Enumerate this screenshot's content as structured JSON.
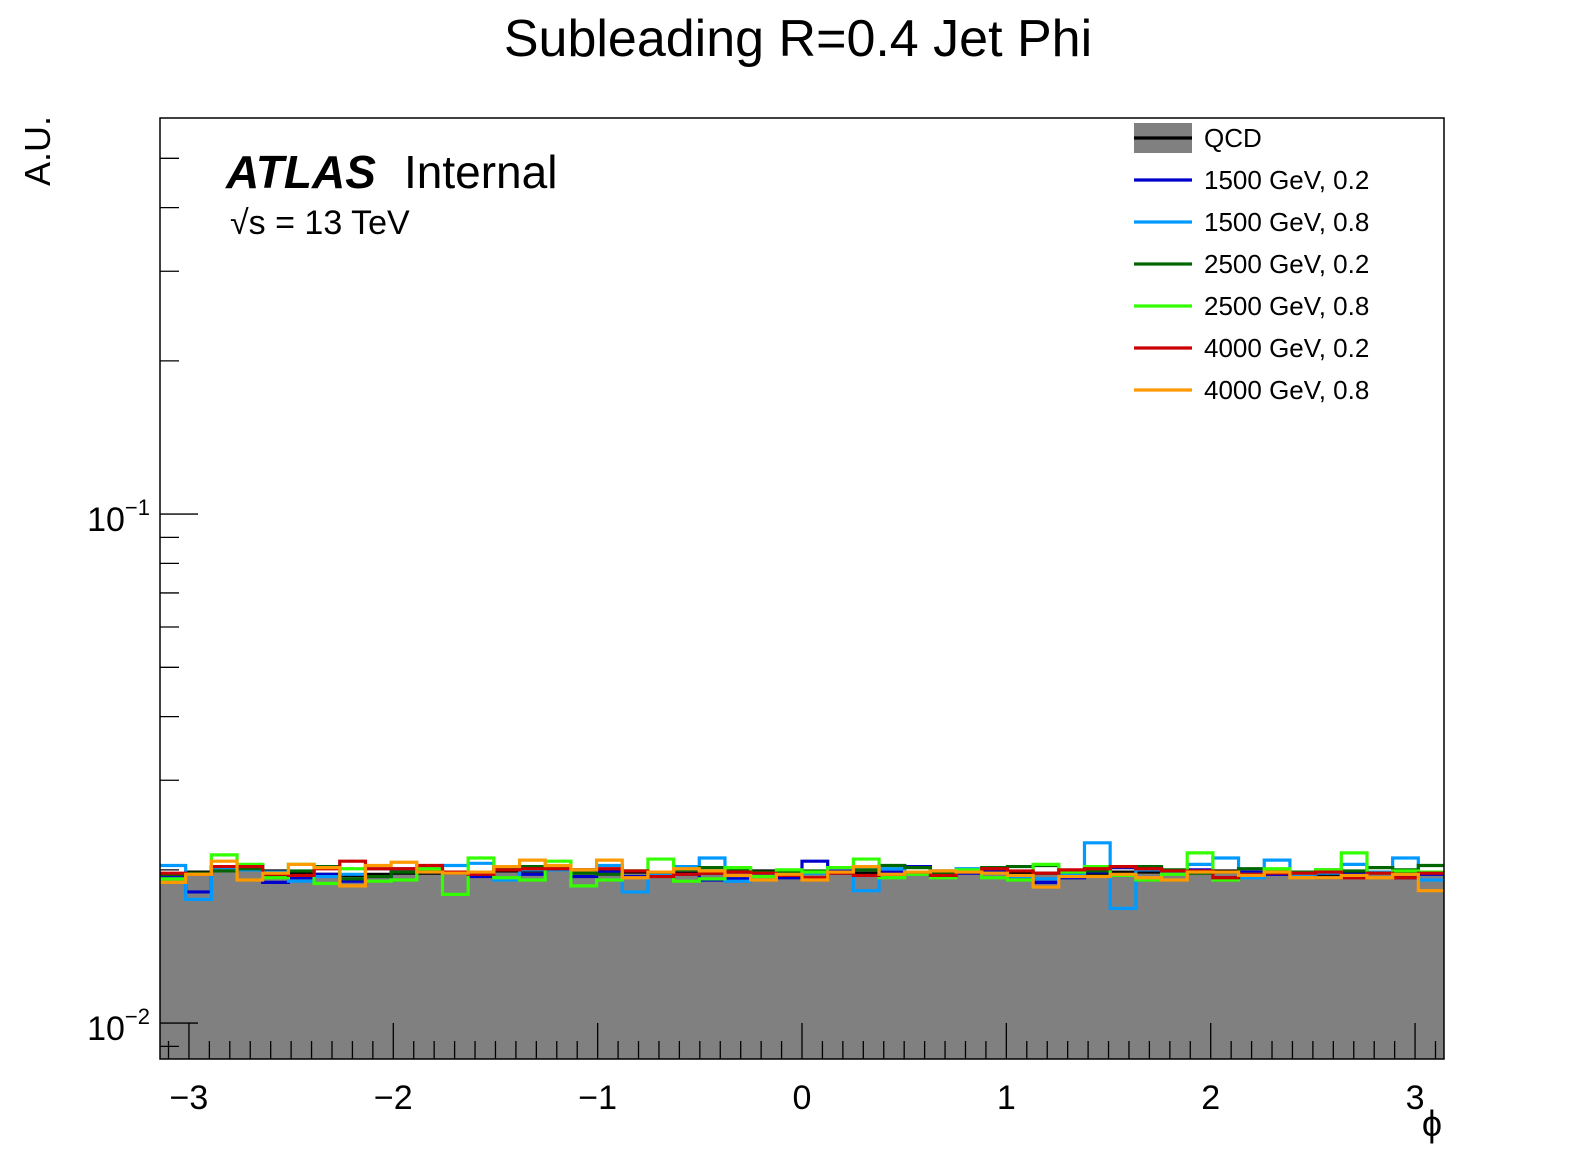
{
  "chart_data": {
    "type": "line",
    "title": "Subleading R=0.4 Jet Phi",
    "xlabel": "ϕ",
    "ylabel": "A.U.",
    "yscale": "log",
    "xlim": [
      -3.1416,
      3.1416
    ],
    "ylim": [
      0.0085,
      0.6
    ],
    "bins": 50,
    "x_ticks": [
      {
        "value": -3,
        "label": "−3"
      },
      {
        "value": -2,
        "label": "−2"
      },
      {
        "value": -1,
        "label": "−1"
      },
      {
        "value": 0,
        "label": "0"
      },
      {
        "value": 1,
        "label": "1"
      },
      {
        "value": 2,
        "label": "2"
      },
      {
        "value": 3,
        "label": "3"
      }
    ],
    "y_ticks": [
      {
        "value": 0.1,
        "base": "10",
        "exp": "−1"
      },
      {
        "value": 0.01,
        "base": "10",
        "exp": "−2"
      }
    ],
    "annotations": {
      "experiment": "ATLAS",
      "status": "Internal",
      "energy": "s = 13 TeV"
    },
    "legend_position": "top-right",
    "series": [
      {
        "name": "QCD",
        "color": "#000000",
        "fill": "#808080",
        "values": [
          0.0196,
          0.0198,
          0.0199,
          0.02,
          0.0199,
          0.0197,
          0.0196,
          0.0195,
          0.0196,
          0.0197,
          0.0197,
          0.0198,
          0.0198,
          0.0199,
          0.0199,
          0.02,
          0.02,
          0.0199,
          0.0198,
          0.0198,
          0.0197,
          0.0197,
          0.0198,
          0.0199,
          0.0198,
          0.0198,
          0.0197,
          0.0197,
          0.0198,
          0.0198,
          0.0199,
          0.0198,
          0.0198,
          0.0197,
          0.0197,
          0.0196,
          0.0197,
          0.0198,
          0.0198,
          0.0198,
          0.0199,
          0.0199,
          0.0198,
          0.0197,
          0.0197,
          0.0196,
          0.0197,
          0.0198,
          0.0198,
          0.0198
        ]
      },
      {
        "name": "1500 GeV, 0.2",
        "color": "#0000cc",
        "values": [
          0.0193,
          0.0181,
          0.0201,
          0.0204,
          0.0189,
          0.0193,
          0.0196,
          0.019,
          0.0194,
          0.02,
          0.0198,
          0.0197,
          0.0194,
          0.0192,
          0.0196,
          0.02,
          0.0194,
          0.0198,
          0.0194,
          0.0198,
          0.0196,
          0.0191,
          0.0192,
          0.0198,
          0.0193,
          0.0208,
          0.0199,
          0.0203,
          0.0198,
          0.0203,
          0.0194,
          0.0197,
          0.02,
          0.0194,
          0.0189,
          0.0193,
          0.0198,
          0.0202,
          0.0201,
          0.0197,
          0.02,
          0.0193,
          0.0198,
          0.0196,
          0.0197,
          0.0193,
          0.0196,
          0.0197,
          0.0193,
          0.0196
        ]
      },
      {
        "name": "1500 GeV, 0.8",
        "color": "#0099ff",
        "values": [
          0.0204,
          0.0175,
          0.0201,
          0.02,
          0.0198,
          0.019,
          0.0194,
          0.0196,
          0.0201,
          0.0201,
          0.0201,
          0.0204,
          0.0206,
          0.0191,
          0.02,
          0.02,
          0.02,
          0.0204,
          0.0181,
          0.0195,
          0.0203,
          0.0211,
          0.019,
          0.0196,
          0.0195,
          0.0197,
          0.0197,
          0.0182,
          0.0201,
          0.0196,
          0.0196,
          0.0201,
          0.0197,
          0.0194,
          0.0192,
          0.0196,
          0.0226,
          0.0168,
          0.02,
          0.0198,
          0.0205,
          0.0211,
          0.0193,
          0.0209,
          0.0196,
          0.0197,
          0.0205,
          0.0198,
          0.0211,
          0.0191
        ]
      },
      {
        "name": "2500 GeV, 0.2",
        "color": "#006600",
        "values": [
          0.0196,
          0.0197,
          0.0199,
          0.0201,
          0.0194,
          0.0199,
          0.0203,
          0.0192,
          0.0194,
          0.0198,
          0.02,
          0.0198,
          0.0198,
          0.0202,
          0.0203,
          0.0201,
          0.0197,
          0.0196,
          0.0199,
          0.0198,
          0.02,
          0.0202,
          0.02,
          0.0198,
          0.0197,
          0.0199,
          0.0198,
          0.02,
          0.0204,
          0.0202,
          0.0197,
          0.0199,
          0.0202,
          0.0203,
          0.0204,
          0.0198,
          0.0199,
          0.0203,
          0.0203,
          0.02,
          0.0197,
          0.0198,
          0.0201,
          0.02,
          0.0198,
          0.02,
          0.0199,
          0.0202,
          0.02,
          0.0204
        ]
      },
      {
        "name": "2500 GeV, 0.8",
        "color": "#33ff00",
        "values": [
          0.0192,
          0.0196,
          0.0214,
          0.0205,
          0.0193,
          0.0205,
          0.0188,
          0.0201,
          0.019,
          0.0191,
          0.0201,
          0.0179,
          0.0211,
          0.0193,
          0.0191,
          0.0208,
          0.0186,
          0.0191,
          0.0199,
          0.021,
          0.019,
          0.0192,
          0.0202,
          0.0194,
          0.02,
          0.0198,
          0.0202,
          0.021,
          0.0193,
          0.0196,
          0.0193,
          0.02,
          0.0193,
          0.0191,
          0.0205,
          0.0198,
          0.0203,
          0.0195,
          0.0191,
          0.0196,
          0.0216,
          0.0191,
          0.0196,
          0.0201,
          0.0197,
          0.02,
          0.0216,
          0.0197,
          0.0199,
          0.0198
        ]
      },
      {
        "name": "4000 GeV, 0.2",
        "color": "#cc0000",
        "values": [
          0.0197,
          0.0196,
          0.0203,
          0.0203,
          0.0196,
          0.0195,
          0.0201,
          0.0208,
          0.0201,
          0.0201,
          0.0204,
          0.0198,
          0.0196,
          0.02,
          0.0201,
          0.0201,
          0.02,
          0.0201,
          0.0199,
          0.0194,
          0.0196,
          0.0197,
          0.0198,
          0.0197,
          0.0195,
          0.0193,
          0.0197,
          0.0195,
          0.0196,
          0.0198,
          0.0195,
          0.0198,
          0.0201,
          0.0199,
          0.0197,
          0.02,
          0.0201,
          0.0203,
          0.0201,
          0.0199,
          0.0199,
          0.0193,
          0.0196,
          0.0197,
          0.0197,
          0.0198,
          0.0193,
          0.0197,
          0.0193,
          0.0197
        ]
      },
      {
        "name": "4000 GeV, 0.8",
        "color": "#ff9900",
        "values": [
          0.0189,
          0.0196,
          0.0208,
          0.0191,
          0.0197,
          0.0205,
          0.0202,
          0.0186,
          0.0204,
          0.0207,
          0.0198,
          0.0197,
          0.0198,
          0.0203,
          0.0209,
          0.0204,
          0.02,
          0.0209,
          0.0193,
          0.0198,
          0.0201,
          0.0199,
          0.0195,
          0.0191,
          0.0196,
          0.0191,
          0.0198,
          0.0203,
          0.0196,
          0.0198,
          0.0199,
          0.0198,
          0.0197,
          0.0195,
          0.0185,
          0.0194,
          0.0194,
          0.0196,
          0.0193,
          0.0191,
          0.0198,
          0.0198,
          0.0195,
          0.0198,
          0.0193,
          0.0193,
          0.0195,
          0.0193,
          0.0196,
          0.0182
        ]
      }
    ]
  }
}
